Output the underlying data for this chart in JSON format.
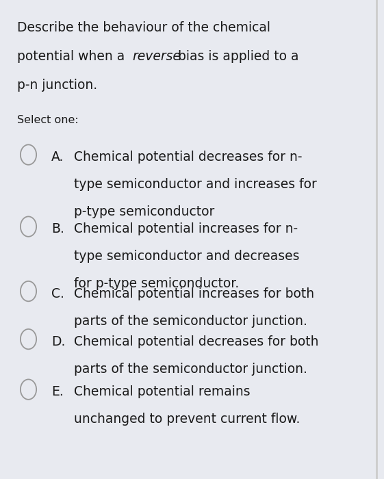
{
  "bg_color": "#e8eaf0",
  "select_one": "Select one:",
  "options": [
    {
      "label": "A.",
      "lines": [
        "Chemical potential decreases for n-",
        "type semiconductor and increases for",
        "p-type semiconductor"
      ]
    },
    {
      "label": "B.",
      "lines": [
        "Chemical potential increases for n-",
        "type semiconductor and decreases",
        "for p-type semiconductor."
      ]
    },
    {
      "label": "C.",
      "lines": [
        "Chemical potential increases for both",
        "parts of the semiconductor junction."
      ]
    },
    {
      "label": "D.",
      "lines": [
        "Chemical potential decreases for both",
        "parts of the semiconductor junction."
      ]
    },
    {
      "label": "E.",
      "lines": [
        "Chemical potential remains",
        "unchanged to prevent current flow."
      ]
    }
  ],
  "text_color": "#1a1a1a",
  "circle_color": "#999999",
  "font_size_title": 13.5,
  "font_size_select": 11.5,
  "font_size_option": 13.5,
  "title_line1": "Describe the behaviour of the chemical",
  "title_line2_pre": "potential when a ",
  "title_line2_italic": "reverse",
  "title_line2_post": " bias is applied to a",
  "title_line3": "p-n junction.",
  "right_border_color": "#cccccc"
}
